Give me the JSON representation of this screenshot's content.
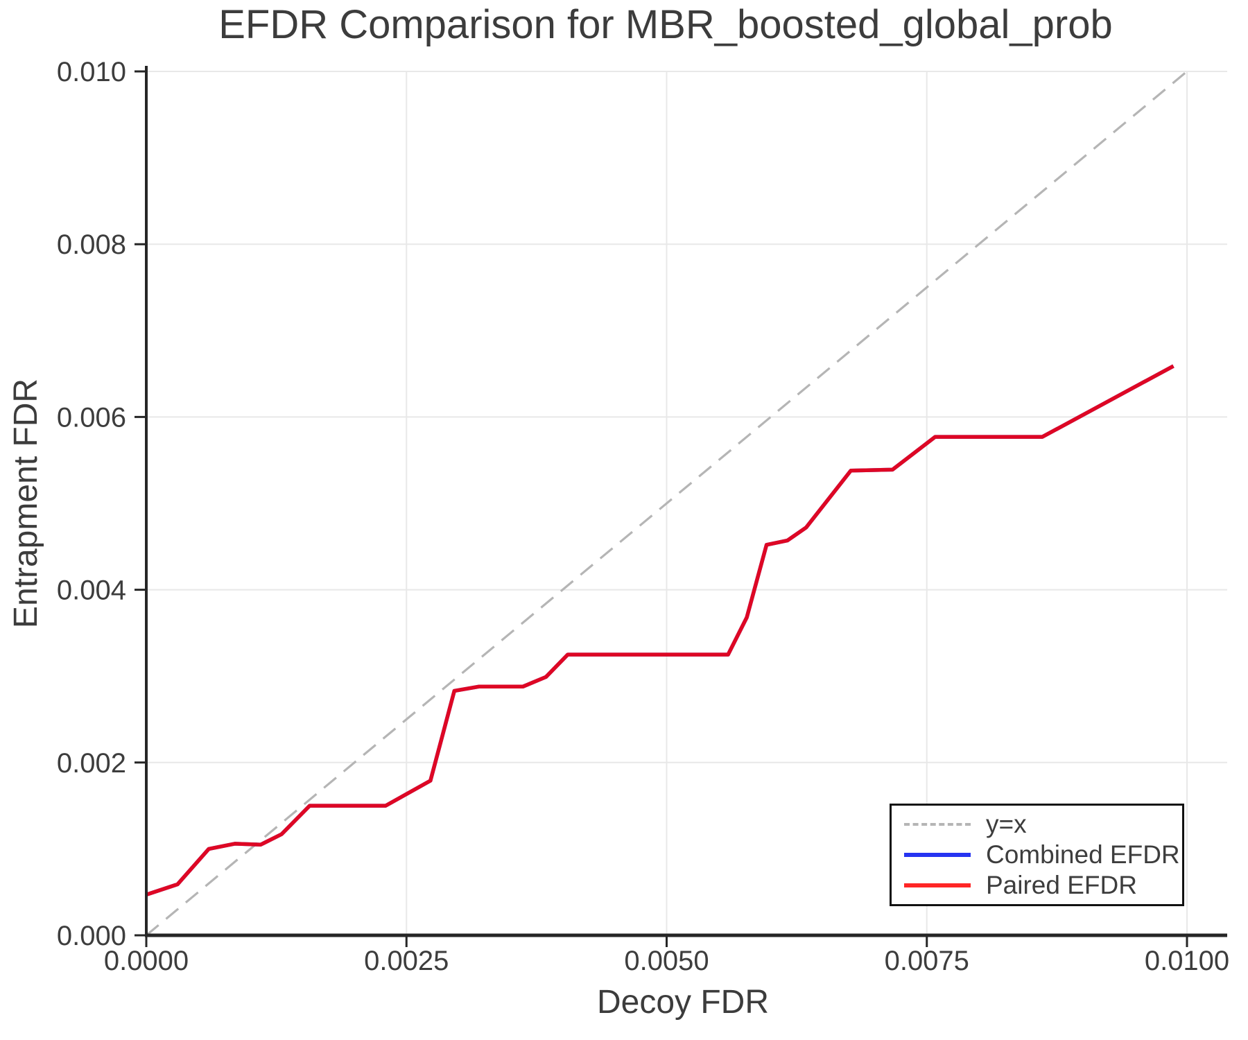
{
  "title": "EFDR Comparison for MBR_boosted_global_prob",
  "colors": {
    "text": "#3c3c3c",
    "tick_text": "#3d3d3d",
    "axis": "#262626",
    "grid": "#e8e8e8",
    "reference": "#b5b5b5",
    "combined": "#0011ee",
    "paired": "#ff0000",
    "legend_border": "#111111",
    "background": "#ffffff"
  },
  "chart_data": {
    "type": "line",
    "title": "EFDR Comparison for MBR_boosted_global_prob",
    "xlabel": "Decoy FDR",
    "ylabel": "Entrapment FDR",
    "xlim": [
      0.0,
      0.01
    ],
    "ylim": [
      0.0,
      0.01
    ],
    "grid": true,
    "legend_position": "lower right",
    "xticks": {
      "values": [
        0.0,
        0.0025,
        0.005,
        0.0075,
        0.01
      ],
      "labels": [
        "0.0000",
        "0.0025",
        "0.0050",
        "0.0075",
        "0.0100"
      ]
    },
    "yticks": {
      "values": [
        0.0,
        0.002,
        0.004,
        0.006,
        0.008,
        0.01
      ],
      "labels": [
        "0.000",
        "0.002",
        "0.004",
        "0.006",
        "0.008",
        "0.010"
      ]
    },
    "legend": [
      "y=x",
      "Combined EFDR",
      "Paired EFDR"
    ],
    "reference_line": {
      "name": "y=x",
      "style": "dashed",
      "color": "#b5b5b5",
      "x": [
        0.0,
        0.01
      ],
      "y": [
        0.0,
        0.01
      ]
    },
    "series": [
      {
        "name": "Combined EFDR",
        "color": "#0011ee",
        "x": [
          0.0,
          0.0003,
          0.0006,
          0.00085,
          0.0011,
          0.0013,
          0.00157,
          0.0023,
          0.00273,
          0.00296,
          0.0032,
          0.00362,
          0.00384,
          0.00405,
          0.00559,
          0.00577,
          0.00596,
          0.00616,
          0.00634,
          0.00677,
          0.00717,
          0.00758,
          0.00861,
          0.00987
        ],
        "y": [
          0.00047,
          0.00059,
          0.001,
          0.00106,
          0.00105,
          0.00117,
          0.0015,
          0.0015,
          0.00179,
          0.00283,
          0.00288,
          0.00288,
          0.00299,
          0.00325,
          0.00325,
          0.00368,
          0.00452,
          0.00457,
          0.00472,
          0.00538,
          0.00539,
          0.00577,
          0.00577,
          0.00659
        ]
      },
      {
        "name": "Paired EFDR",
        "color": "#ff0000",
        "x": [
          0.0,
          0.0003,
          0.0006,
          0.00085,
          0.0011,
          0.0013,
          0.00157,
          0.0023,
          0.00273,
          0.00296,
          0.0032,
          0.00362,
          0.00384,
          0.00405,
          0.00559,
          0.00577,
          0.00596,
          0.00616,
          0.00634,
          0.00677,
          0.00717,
          0.00758,
          0.00861,
          0.00987
        ],
        "y": [
          0.00047,
          0.00059,
          0.001,
          0.00106,
          0.00105,
          0.00117,
          0.0015,
          0.0015,
          0.00179,
          0.00283,
          0.00288,
          0.00288,
          0.00299,
          0.00325,
          0.00325,
          0.00368,
          0.00452,
          0.00457,
          0.00472,
          0.00538,
          0.00539,
          0.00577,
          0.00577,
          0.00659
        ]
      }
    ]
  }
}
